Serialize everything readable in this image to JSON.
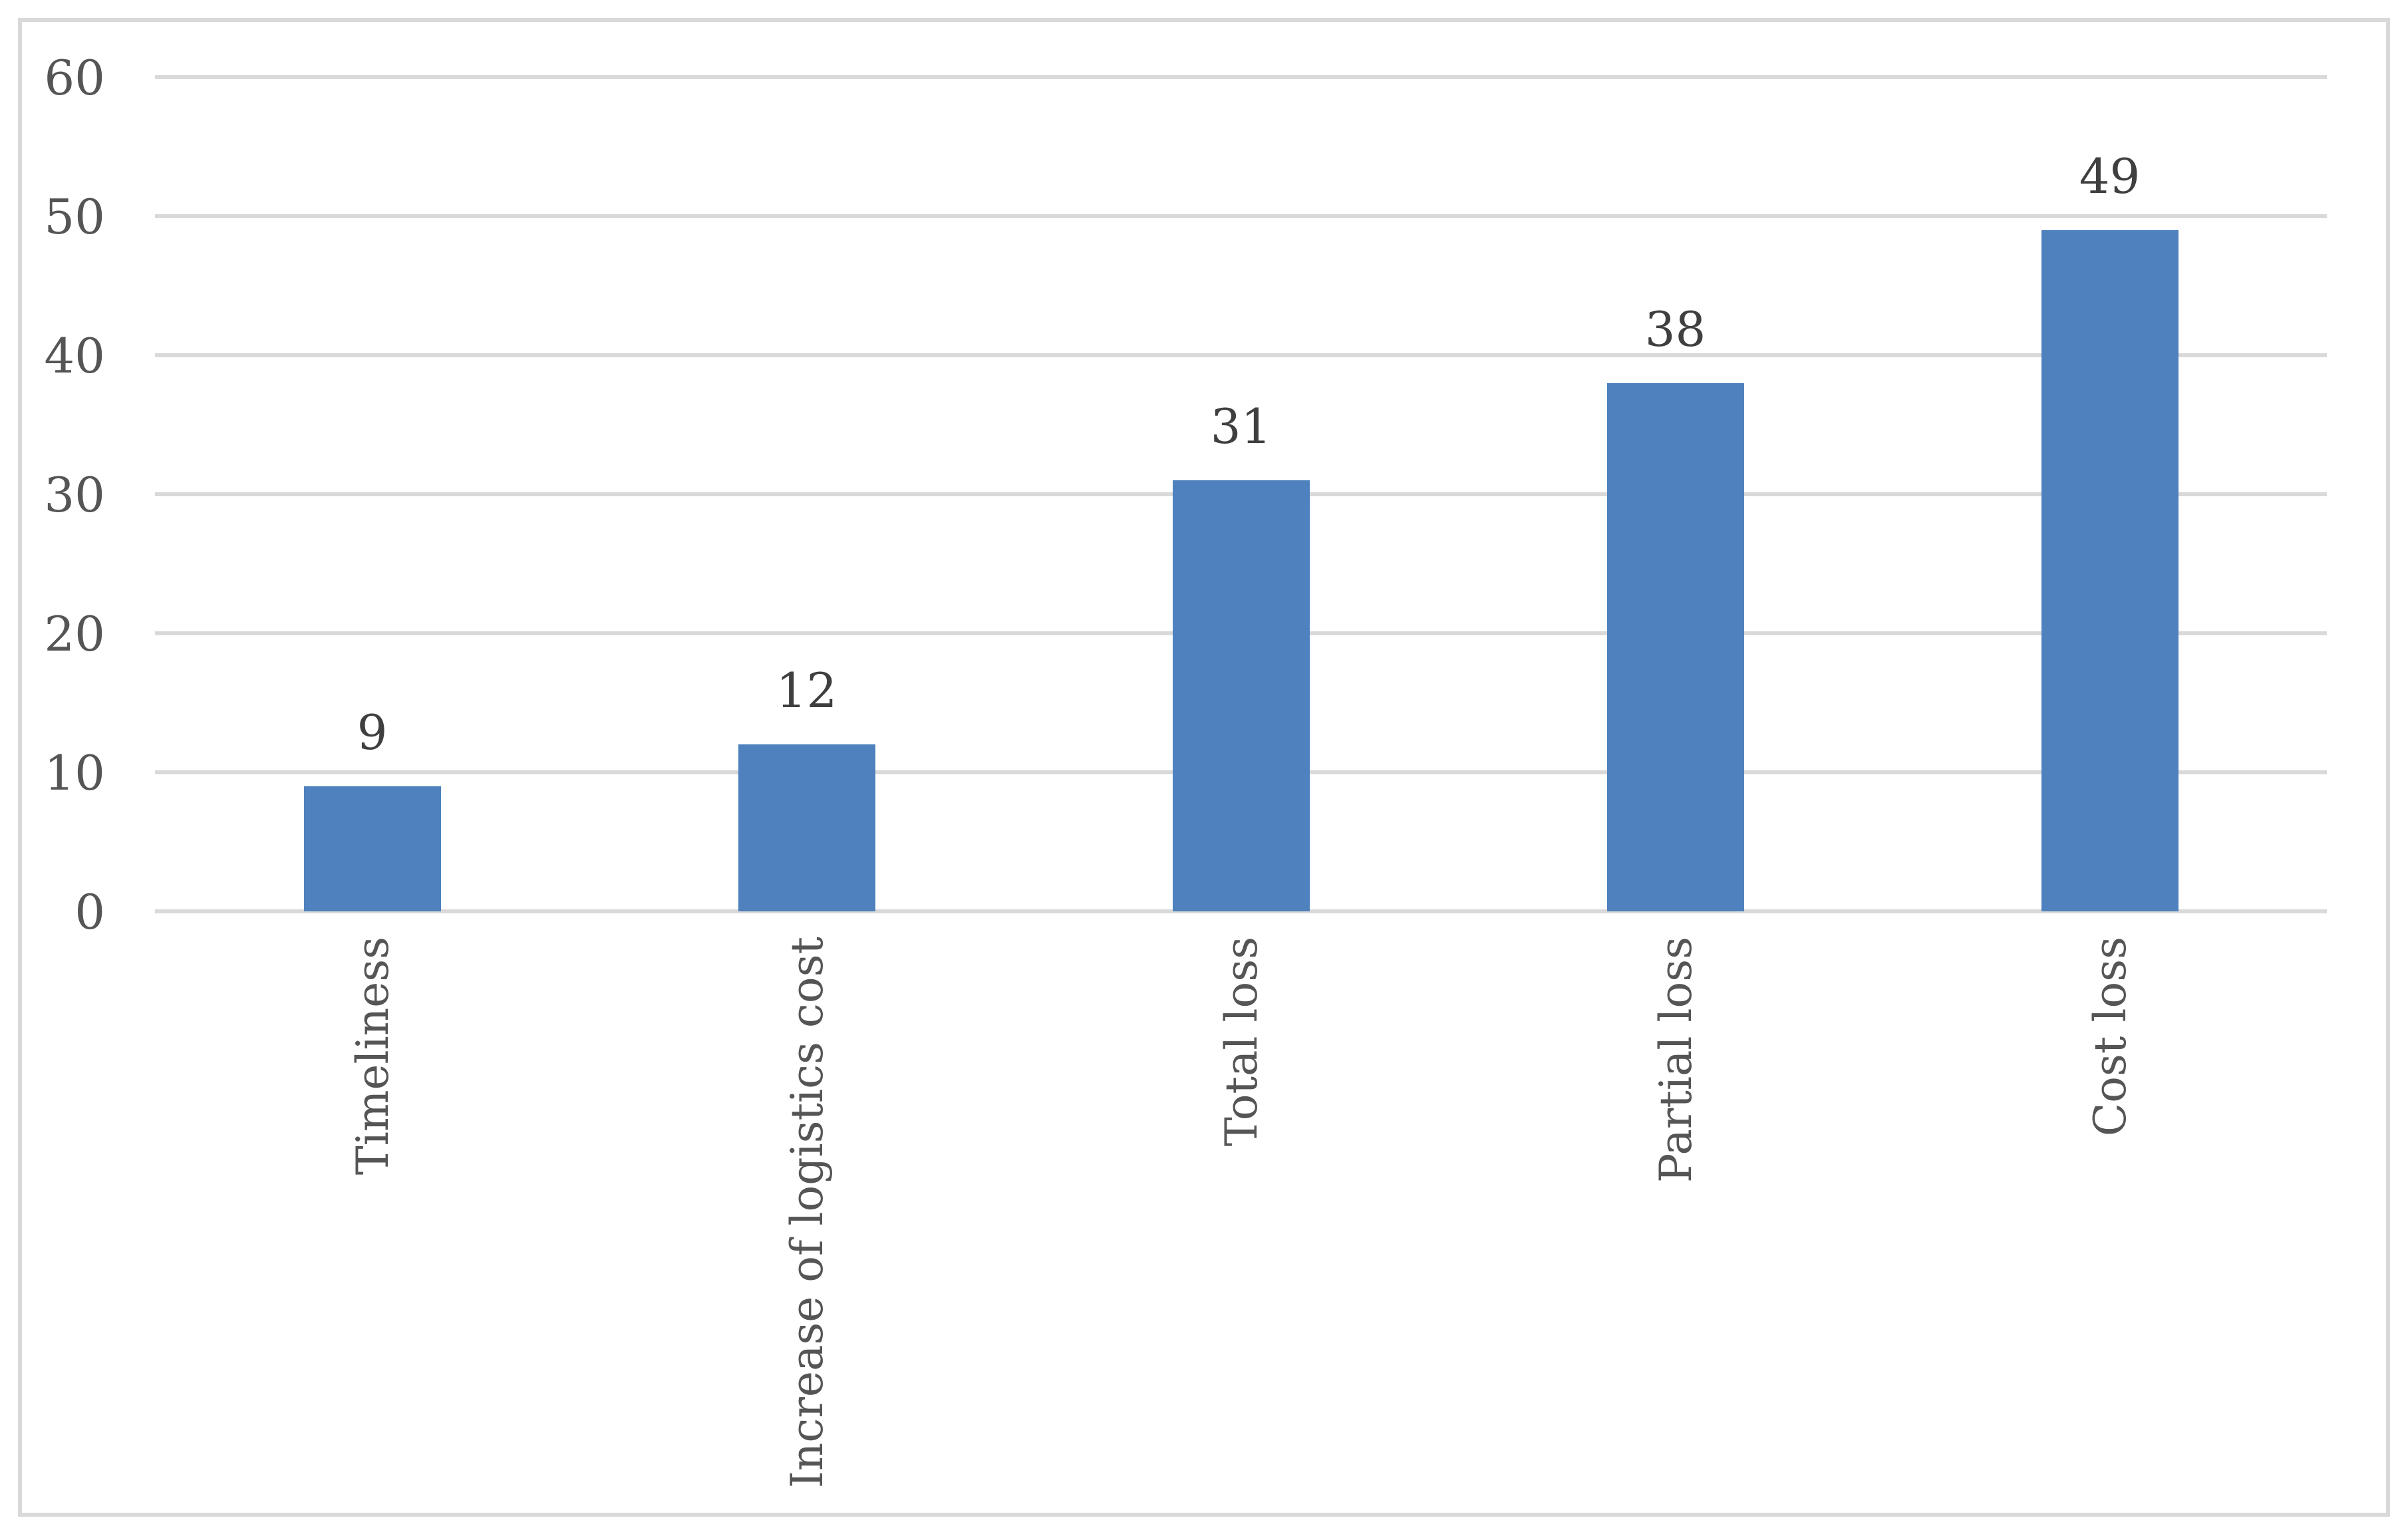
{
  "chart_data": {
    "type": "bar",
    "title": "",
    "xlabel": "",
    "ylabel": "",
    "categories": [
      "Timeliness",
      "Increase of logistics cost",
      "Total loss",
      "Partial loss",
      "Cost loss"
    ],
    "values": [
      9,
      12,
      31,
      38,
      49
    ],
    "data_labels": [
      "9",
      "12",
      "31",
      "38",
      "49"
    ],
    "ylim": [
      0,
      60
    ],
    "yticks": [
      0,
      10,
      20,
      30,
      40,
      50,
      60
    ],
    "ytick_labels": [
      "0",
      "10",
      "20",
      "30",
      "40",
      "50",
      "60"
    ],
    "grid": "horizontal-gridlines-on",
    "legend": "none",
    "category_label_orientation": "rotated-90-reading-bottom-to-top",
    "colors": {
      "bar_fill": "#4E81BD",
      "gridline": "#D9D9D9",
      "axis_line": "#D9D9D9",
      "chart_border": "#D9D9D9",
      "data_label_text": "#3F3F3F",
      "axis_label_text": "#555555",
      "background": "#FFFFFF"
    }
  }
}
